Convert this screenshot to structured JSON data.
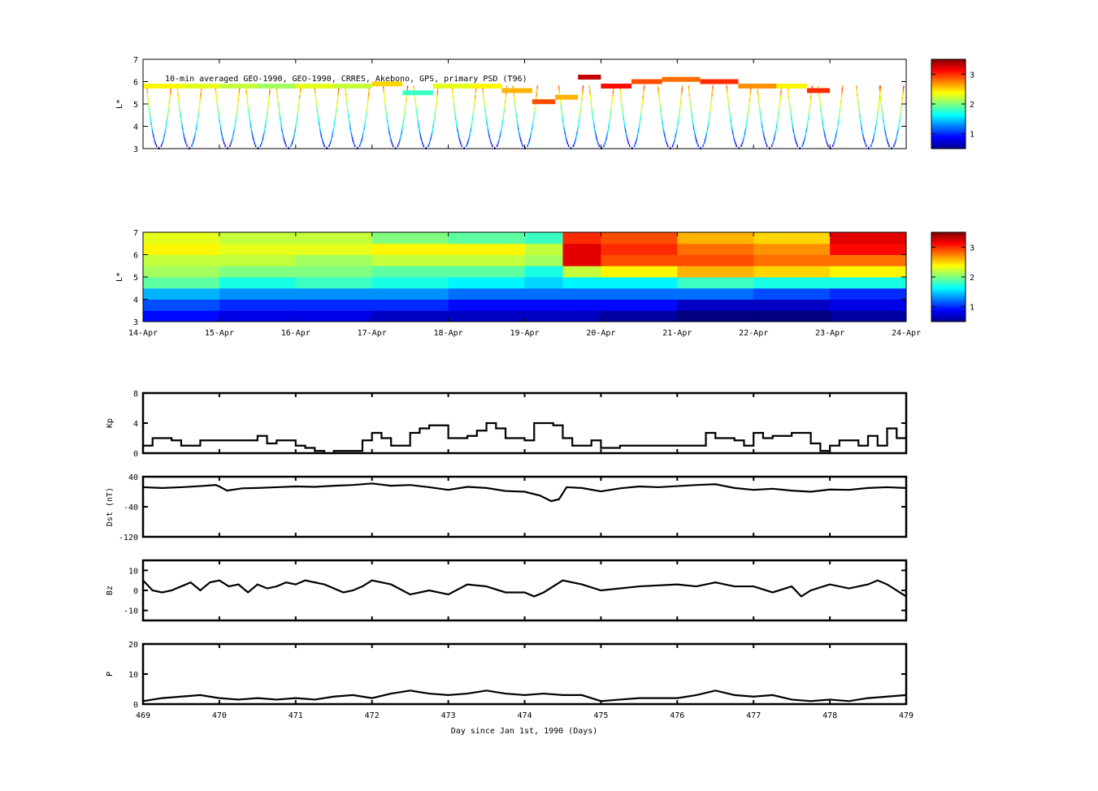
{
  "figure": {
    "title": "10-min averaged GEO-1990, GEO-1990, CRRES, Akebono, GPS, primary PSD (T96)",
    "xlabel": "Day since Jan 1st, 1990 (Days)"
  },
  "chart_data": [
    {
      "id": "observed-psd",
      "type": "heatmap",
      "title": "10-min averaged GEO-1990, GEO-1990, CRRES, Akebono, GPS, primary PSD (T96)",
      "ylabel": "L*",
      "ylim": [
        3,
        7
      ],
      "yticks": [
        3,
        4,
        5,
        6,
        7
      ],
      "colorbar": {
        "ticks": [
          1,
          2,
          3
        ],
        "range": [
          0.5,
          3.5
        ],
        "colormap": "jet"
      },
      "geo_orbit": [
        {
          "day": 469.0,
          "L": 5.8,
          "psd": 2.4
        },
        {
          "day": 469.5,
          "L": 5.8,
          "psd": 2.3
        },
        {
          "day": 470.0,
          "L": 5.8,
          "psd": 2.2
        },
        {
          "day": 470.5,
          "L": 5.8,
          "psd": 2.1
        },
        {
          "day": 471.0,
          "L": 5.8,
          "psd": 2.3
        },
        {
          "day": 471.5,
          "L": 5.8,
          "psd": 2.2
        },
        {
          "day": 472.0,
          "L": 5.9,
          "psd": 2.5
        },
        {
          "day": 472.4,
          "L": 5.5,
          "psd": 1.8
        },
        {
          "day": 472.8,
          "L": 5.8,
          "psd": 2.3
        },
        {
          "day": 473.3,
          "L": 5.8,
          "psd": 2.4
        },
        {
          "day": 473.7,
          "L": 5.6,
          "psd": 2.6
        },
        {
          "day": 474.1,
          "L": 5.1,
          "psd": 2.9
        },
        {
          "day": 474.4,
          "L": 5.3,
          "psd": 2.6
        },
        {
          "day": 474.7,
          "L": 6.2,
          "psd": 3.3
        },
        {
          "day": 475.0,
          "L": 5.8,
          "psd": 3.1
        },
        {
          "day": 475.4,
          "L": 6.0,
          "psd": 2.9
        },
        {
          "day": 475.8,
          "L": 6.1,
          "psd": 2.8
        },
        {
          "day": 476.3,
          "L": 6.0,
          "psd": 3.0
        },
        {
          "day": 476.8,
          "L": 5.8,
          "psd": 2.7
        },
        {
          "day": 477.3,
          "L": 5.8,
          "psd": 2.4
        },
        {
          "day": 477.7,
          "L": 5.6,
          "psd": 3.0
        },
        {
          "day": 478.0,
          "L": 6.0,
          "psd": 3.1
        }
      ],
      "passes": [
        469.2,
        469.6,
        470.1,
        470.5,
        470.9,
        471.4,
        471.8,
        472.3,
        472.7,
        473.2,
        473.6,
        474.0,
        474.6,
        475.0,
        475.4,
        475.9,
        476.3,
        476.8,
        477.2,
        477.6,
        478.0,
        478.5,
        478.8
      ]
    },
    {
      "id": "assimilated-psd",
      "type": "heatmap",
      "ylabel": "L*",
      "ylim": [
        3,
        7
      ],
      "yticks": [
        3,
        4,
        5,
        6,
        7
      ],
      "xtick_labels": [
        "14-Apr",
        "15-Apr",
        "16-Apr",
        "17-Apr",
        "18-Apr",
        "19-Apr",
        "20-Apr",
        "21-Apr",
        "22-Apr",
        "23-Apr",
        "24-Apr"
      ],
      "colorbar": {
        "ticks": [
          1,
          2,
          3
        ],
        "range": [
          0.5,
          3.5
        ],
        "colormap": "jet"
      },
      "L_bins": [
        3.25,
        3.75,
        4.25,
        4.75,
        5.25,
        5.75,
        6.25,
        6.75
      ],
      "time_bins": [
        469.0,
        470.0,
        471.0,
        472.0,
        473.0,
        474.0,
        474.5,
        475.0,
        476.0,
        477.0,
        478.0
      ],
      "psd": [
        [
          0.9,
          1.1,
          1.4,
          1.9,
          2.1,
          2.2,
          2.4,
          2.3
        ],
        [
          0.8,
          1.0,
          1.3,
          1.7,
          2.0,
          2.2,
          2.3,
          2.2
        ],
        [
          0.8,
          1.0,
          1.3,
          1.8,
          2.0,
          2.1,
          2.3,
          2.2
        ],
        [
          0.7,
          1.0,
          1.3,
          1.7,
          1.9,
          2.2,
          2.4,
          2.0
        ],
        [
          0.7,
          0.9,
          1.2,
          1.6,
          1.9,
          2.2,
          2.4,
          1.9
        ],
        [
          0.7,
          0.9,
          1.2,
          1.5,
          1.7,
          2.1,
          2.2,
          1.8
        ],
        [
          0.7,
          0.9,
          1.2,
          1.6,
          2.2,
          3.2,
          3.2,
          3.0
        ],
        [
          0.6,
          0.9,
          1.2,
          1.6,
          2.4,
          2.9,
          3.0,
          2.9
        ],
        [
          0.5,
          0.7,
          1.2,
          1.8,
          2.6,
          2.9,
          2.8,
          2.6
        ],
        [
          0.5,
          0.7,
          1.1,
          1.7,
          2.5,
          2.8,
          2.7,
          2.5
        ],
        [
          0.6,
          0.8,
          1.0,
          1.7,
          2.4,
          2.8,
          3.1,
          3.2
        ]
      ]
    },
    {
      "id": "kp",
      "type": "line",
      "ylabel": "Kp",
      "ylim": [
        0,
        8
      ],
      "yticks": [
        0,
        4,
        8
      ],
      "x": [
        469.0,
        469.125,
        469.375,
        469.5,
        469.75,
        470.375,
        470.5,
        470.625,
        470.75,
        471.0,
        471.125,
        471.25,
        471.375,
        471.5,
        471.875,
        472.0,
        472.125,
        472.25,
        472.375,
        472.5,
        472.625,
        472.75,
        473.0,
        473.25,
        473.375,
        473.5,
        473.625,
        473.75,
        474.0,
        474.125,
        474.375,
        474.5,
        474.625,
        474.875,
        475.0,
        475.25,
        475.5,
        475.75,
        476.0,
        476.25,
        476.375,
        476.5,
        476.75,
        476.875,
        477.0,
        477.125,
        477.25,
        477.5,
        477.625,
        477.75,
        477.875,
        478.0,
        478.125,
        478.375,
        478.5,
        478.625,
        478.75,
        478.875,
        479.0
      ],
      "y": [
        1.0,
        2.0,
        1.7,
        1.0,
        1.7,
        1.7,
        2.3,
        1.3,
        1.7,
        1.0,
        0.7,
        0.3,
        0.0,
        0.3,
        1.7,
        2.7,
        2.0,
        1.0,
        1.0,
        2.7,
        3.3,
        3.7,
        2.0,
        2.3,
        3.0,
        4.0,
        3.3,
        2.0,
        1.7,
        4.0,
        3.7,
        2.0,
        1.0,
        1.7,
        0.7,
        1.0,
        1.0,
        1.0,
        1.0,
        1.0,
        2.7,
        2.0,
        1.7,
        1.0,
        2.7,
        2.0,
        2.3,
        2.7,
        2.7,
        1.3,
        0.3,
        1.0,
        1.7,
        1.0,
        2.3,
        1.0,
        3.3,
        2.0,
        2.3
      ]
    },
    {
      "id": "dst",
      "type": "line",
      "ylabel": "Dst (nT)",
      "ylim": [
        -120,
        40
      ],
      "yticks": [
        -120,
        -40,
        40
      ],
      "x": [
        469.0,
        469.25,
        469.5,
        469.75,
        469.95,
        470.0,
        470.1,
        470.3,
        470.5,
        470.75,
        471.0,
        471.25,
        471.5,
        471.75,
        472.0,
        472.25,
        472.5,
        472.75,
        473.0,
        473.25,
        473.5,
        473.75,
        474.0,
        474.2,
        474.35,
        474.45,
        474.55,
        474.75,
        475.0,
        475.25,
        475.5,
        475.75,
        476.0,
        476.25,
        476.5,
        476.75,
        477.0,
        477.25,
        477.5,
        477.75,
        478.0,
        478.25,
        478.5,
        478.75,
        479.0
      ],
      "y": [
        12,
        10,
        12,
        15,
        18,
        14,
        3,
        9,
        10,
        12,
        14,
        13,
        16,
        18,
        22,
        16,
        18,
        12,
        5,
        13,
        10,
        2,
        0,
        -10,
        -25,
        -20,
        12,
        10,
        1,
        9,
        14,
        12,
        15,
        18,
        20,
        10,
        5,
        8,
        3,
        0,
        6,
        5,
        10,
        12,
        10
      ]
    },
    {
      "id": "bz",
      "type": "line",
      "ylabel": "Bz",
      "ylim": [
        -15,
        15
      ],
      "yticks": [
        -10,
        0,
        10
      ],
      "x": [
        469.0,
        469.125,
        469.25,
        469.375,
        469.5,
        469.625,
        469.75,
        469.875,
        470.0,
        470.125,
        470.25,
        470.375,
        470.5,
        470.625,
        470.75,
        470.875,
        471.0,
        471.125,
        471.25,
        471.375,
        471.5,
        471.625,
        471.75,
        471.875,
        472.0,
        472.25,
        472.5,
        472.75,
        473.0,
        473.25,
        473.5,
        473.75,
        474.0,
        474.125,
        474.25,
        474.5,
        474.75,
        475.0,
        475.5,
        476.0,
        476.25,
        476.5,
        476.75,
        477.0,
        477.25,
        477.5,
        477.625,
        477.75,
        478.0,
        478.25,
        478.5,
        478.625,
        478.75,
        479.0
      ],
      "y": [
        5,
        0,
        -1,
        0,
        2,
        4,
        0,
        4,
        5,
        2,
        3,
        -1,
        3,
        1,
        2,
        4,
        3,
        5,
        4,
        3,
        1,
        -1,
        0,
        2,
        5,
        3,
        -2,
        0,
        -2,
        3,
        2,
        -1,
        -1,
        -3,
        -1,
        5,
        3,
        0,
        2,
        3,
        2,
        4,
        2,
        2,
        -1,
        2,
        -3,
        0,
        3,
        1,
        3,
        5,
        3,
        -3
      ]
    },
    {
      "id": "pressure",
      "type": "line",
      "ylabel": "P",
      "ylim": [
        0,
        20
      ],
      "yticks": [
        0,
        10,
        20
      ],
      "xticks": [
        469,
        470,
        471,
        472,
        473,
        474,
        475,
        476,
        477,
        478,
        479
      ],
      "x": [
        469.0,
        469.25,
        469.5,
        469.75,
        470.0,
        470.25,
        470.5,
        470.75,
        471.0,
        471.25,
        471.5,
        471.75,
        472.0,
        472.25,
        472.5,
        472.75,
        473.0,
        473.25,
        473.5,
        473.75,
        474.0,
        474.25,
        474.5,
        474.75,
        475.0,
        475.25,
        475.5,
        475.75,
        476.0,
        476.25,
        476.5,
        476.75,
        477.0,
        477.25,
        477.5,
        477.75,
        478.0,
        478.25,
        478.5,
        478.75,
        479.0
      ],
      "y": [
        1.0,
        2.0,
        2.5,
        3.0,
        2.0,
        1.5,
        2.0,
        1.5,
        2.0,
        1.5,
        2.5,
        3.0,
        2.0,
        3.5,
        4.5,
        3.5,
        3.0,
        3.5,
        4.5,
        3.5,
        3.0,
        3.5,
        3.0,
        3.0,
        1.0,
        1.5,
        2.0,
        2.0,
        2.0,
        3.0,
        4.5,
        3.0,
        2.5,
        3.0,
        1.5,
        1.0,
        1.5,
        1.0,
        2.0,
        2.5,
        3.0
      ]
    }
  ]
}
